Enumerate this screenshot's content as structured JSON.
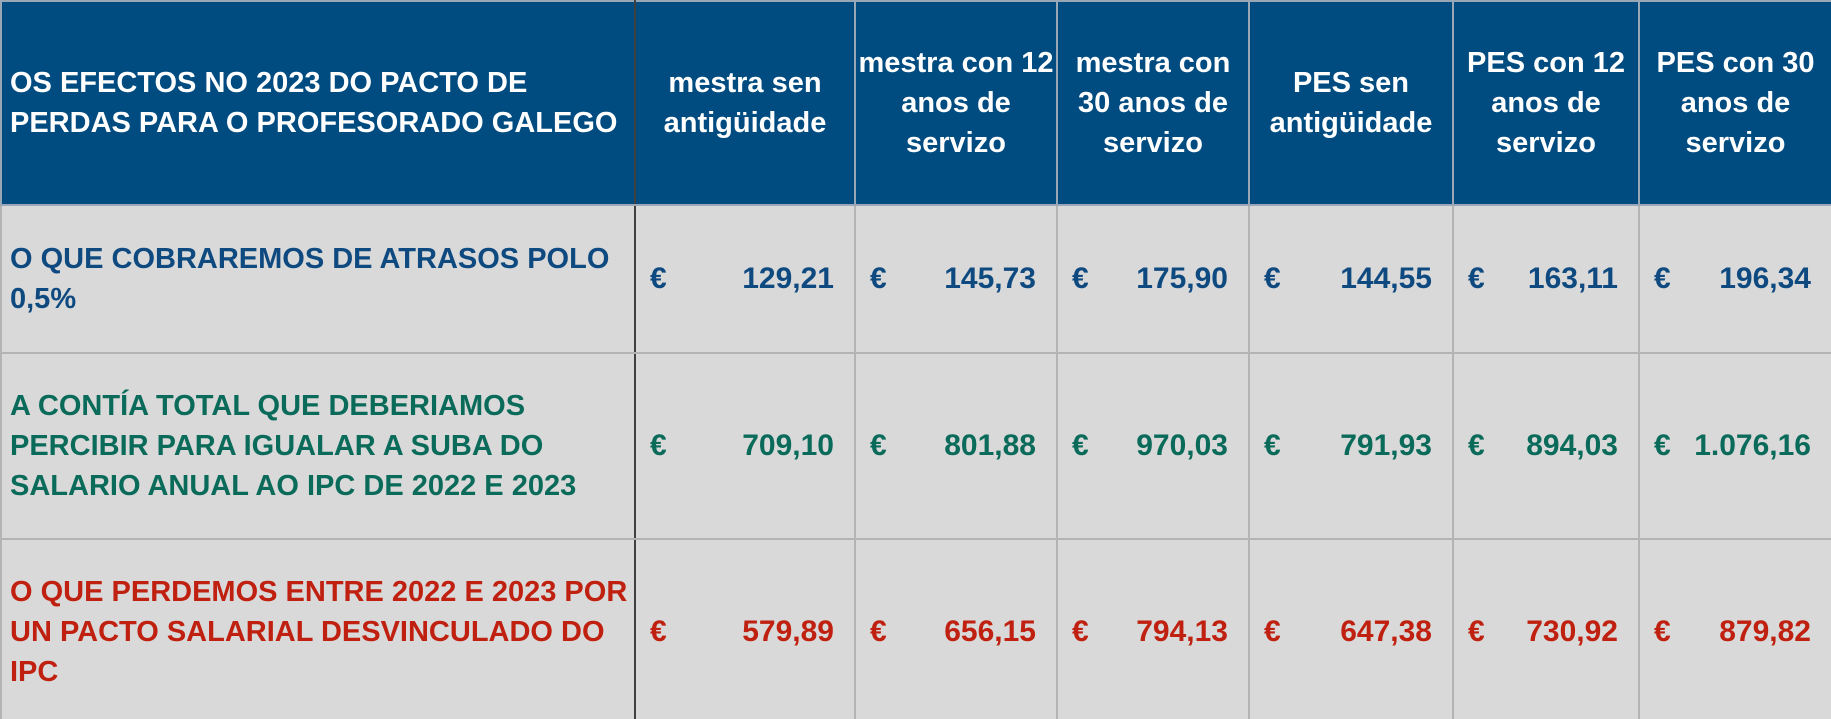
{
  "table": {
    "title": "OS EFECTOS NO 2023 DO PACTO DE PERDAS PARA O PROFESORADO GALEGO",
    "headers": [
      "mestra sen antigüidade",
      "mestra con 12 anos de servizo",
      "mestra con 30 anos de servizo",
      "PES sen antigüidade",
      "PES con 12 anos de servizo",
      "PES con 30 anos de servizo"
    ],
    "rows": [
      {
        "label": "O QUE COBRAREMOS DE ATRASOS POLO 0,5%",
        "values": [
          {
            "currency": "€",
            "amount": "129,21"
          },
          {
            "currency": "€",
            "amount": "145,73"
          },
          {
            "currency": "€",
            "amount": "175,90"
          },
          {
            "currency": "€",
            "amount": "144,55"
          },
          {
            "currency": "€",
            "amount": "163,11"
          },
          {
            "currency": "€",
            "amount": "196,34"
          }
        ]
      },
      {
        "label": "A CONTÍA TOTAL QUE DEBERIAMOS PERCIBIR PARA IGUALAR A SUBA DO SALARIO ANUAL AO IPC DE 2022 E 2023",
        "values": [
          {
            "currency": "€",
            "amount": "709,10"
          },
          {
            "currency": "€",
            "amount": "801,88"
          },
          {
            "currency": "€",
            "amount": "970,03"
          },
          {
            "currency": "€",
            "amount": "791,93"
          },
          {
            "currency": "€",
            "amount": "894,03"
          },
          {
            "currency": "€",
            "amount": "1.076,16"
          }
        ]
      },
      {
        "label": "O QUE PERDEMOS ENTRE 2022 E 2023 POR UN PACTO SALARIAL DESVINCULADO DO IPC",
        "values": [
          {
            "currency": "€",
            "amount": "579,89"
          },
          {
            "currency": "€",
            "amount": "656,15"
          },
          {
            "currency": "€",
            "amount": "794,13"
          },
          {
            "currency": "€",
            "amount": "647,38"
          },
          {
            "currency": "€",
            "amount": "730,92"
          },
          {
            "currency": "€",
            "amount": "879,82"
          }
        ]
      }
    ]
  },
  "colors": {
    "header_bg": "#004b80",
    "header_text": "#ffffff",
    "body_bg": "#d9d9d9",
    "row1_text": "#0e4a80",
    "row2_text": "#0a6b5a",
    "row3_text": "#c0200f"
  }
}
